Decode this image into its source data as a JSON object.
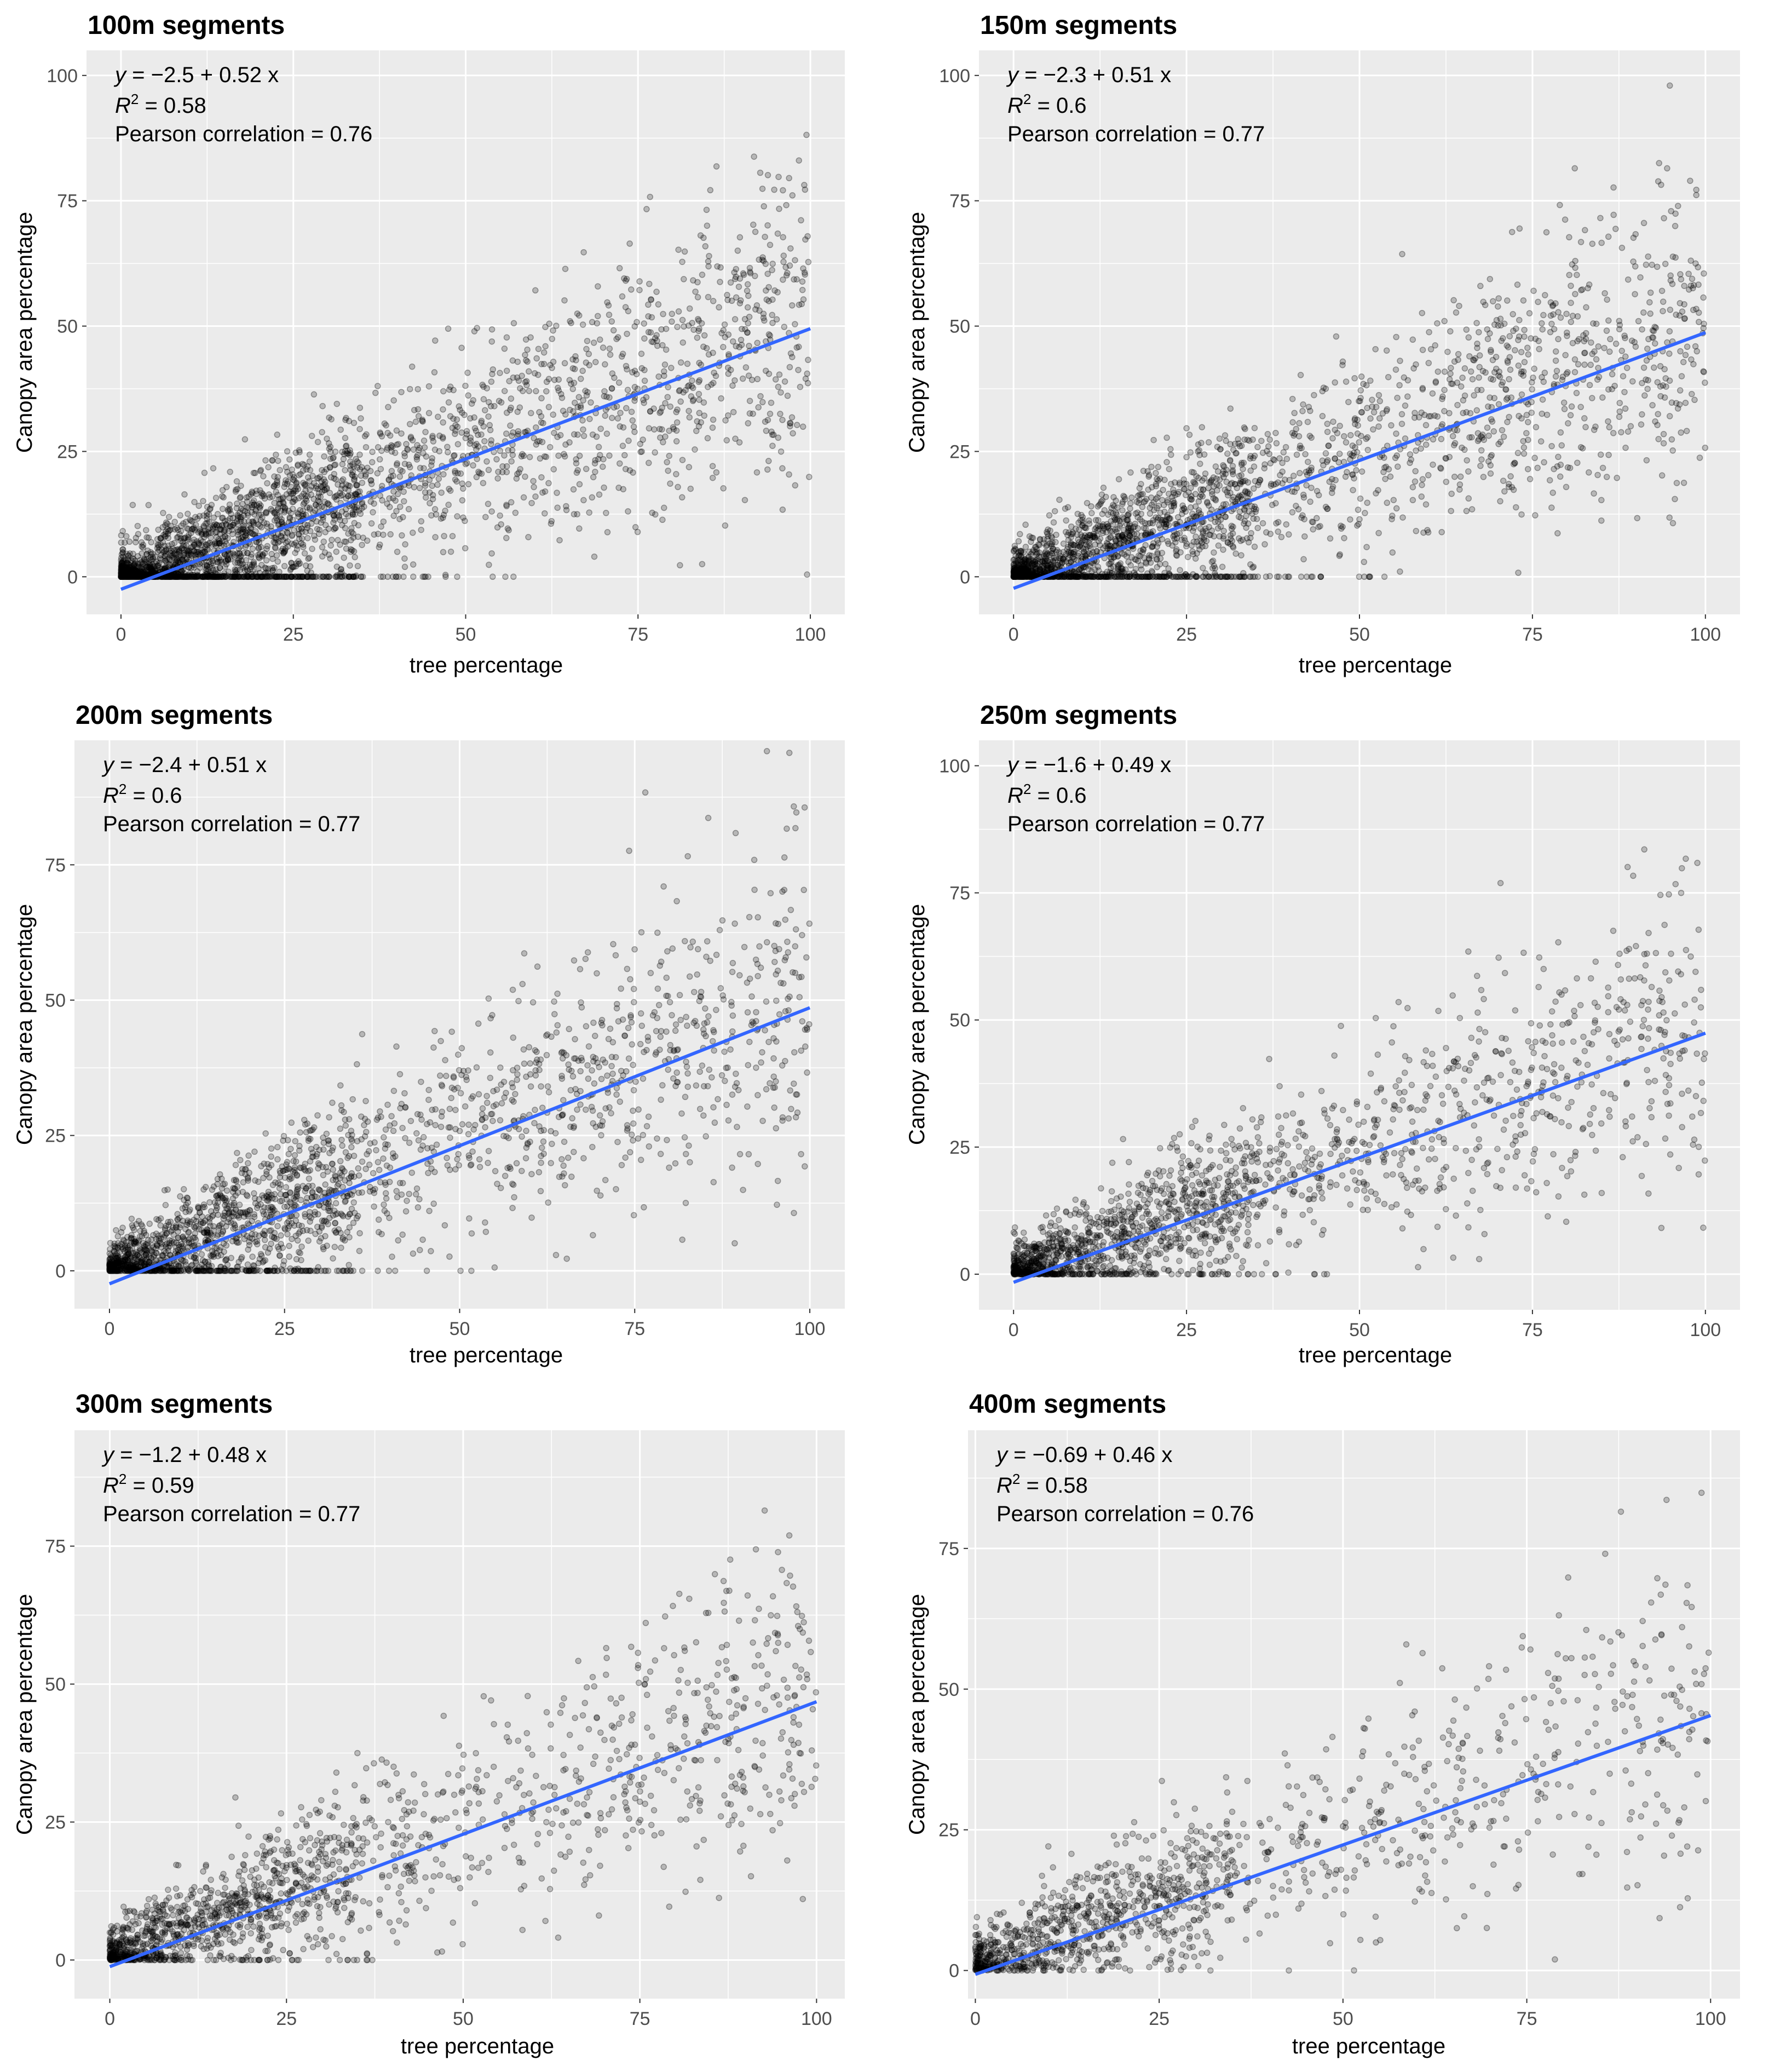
{
  "figure": {
    "xlabel": "tree percentage",
    "ylabel": "Canopy area percentage",
    "colors": {
      "panel_bg": "#ebebeb",
      "grid": "#ffffff",
      "points": "#000000",
      "fit_line": "#3366ff",
      "tick_text": "#4d4d4d"
    }
  },
  "chart_data": [
    {
      "type": "scatter",
      "title": "100m segments",
      "xlabel": "tree percentage",
      "ylabel": "Canopy area percentage",
      "xlim": [
        -5,
        105
      ],
      "ylim": [
        -7.5,
        105
      ],
      "xticks": [
        0,
        25,
        50,
        75,
        100
      ],
      "yticks": [
        0,
        25,
        50,
        75,
        100
      ],
      "xtick_labels": [
        "0",
        "25",
        "50",
        "75",
        "100"
      ],
      "ytick_labels": [
        "0",
        "25",
        "50",
        "75",
        "100"
      ],
      "fit": {
        "intercept": -2.5,
        "slope": 0.52
      },
      "annotation": {
        "equation_y": "y",
        "equation_rhs": " = −2.5 + 0.52 x",
        "r2_label": "R",
        "r2_sup": "2",
        "r2_value": " = 0.58",
        "pearson": "Pearson correlation = 0.76"
      },
      "point_cloud": {
        "n_points": 3000,
        "max_x": 100,
        "noise_sd": 11,
        "zero_share": 0.25,
        "seed": 101
      }
    },
    {
      "type": "scatter",
      "title": "150m segments",
      "xlabel": "tree percentage",
      "ylabel": "Canopy area percentage",
      "xlim": [
        -5,
        105
      ],
      "ylim": [
        -7.5,
        105
      ],
      "xticks": [
        0,
        25,
        50,
        75,
        100
      ],
      "yticks": [
        0,
        25,
        50,
        75,
        100
      ],
      "xtick_labels": [
        "0",
        "25",
        "50",
        "75",
        "100"
      ],
      "ytick_labels": [
        "0",
        "25",
        "50",
        "75",
        "100"
      ],
      "fit": {
        "intercept": -2.3,
        "slope": 0.51
      },
      "annotation": {
        "equation_y": "y",
        "equation_rhs": " = −2.3 + 0.51 x",
        "r2_label": "R",
        "r2_sup": "2",
        "r2_value": " = 0.6",
        "pearson": "Pearson correlation = 0.77"
      },
      "point_cloud": {
        "n_points": 2500,
        "max_x": 100,
        "noise_sd": 10.5,
        "zero_share": 0.2,
        "seed": 151
      }
    },
    {
      "type": "scatter",
      "title": "200m segments",
      "xlabel": "tree percentage",
      "ylabel": "Canopy area percentage",
      "xlim": [
        -5,
        105
      ],
      "ylim": [
        -7,
        98
      ],
      "xticks": [
        0,
        25,
        50,
        75,
        100
      ],
      "yticks": [
        0,
        25,
        50,
        75
      ],
      "xtick_labels": [
        "0",
        "25",
        "50",
        "75",
        "100"
      ],
      "ytick_labels": [
        "0",
        "25",
        "50",
        "75"
      ],
      "fit": {
        "intercept": -2.4,
        "slope": 0.51
      },
      "annotation": {
        "equation_y": "y",
        "equation_rhs": " = −2.4 + 0.51 x",
        "r2_label": "R",
        "r2_sup": "2",
        "r2_value": " = 0.6",
        "pearson": "Pearson correlation = 0.77"
      },
      "point_cloud": {
        "n_points": 2200,
        "max_x": 100,
        "noise_sd": 10.5,
        "zero_share": 0.2,
        "seed": 201
      }
    },
    {
      "type": "scatter",
      "title": "250m segments",
      "xlabel": "tree percentage",
      "ylabel": "Canopy area percentage",
      "xlim": [
        -5,
        105
      ],
      "ylim": [
        -7,
        105
      ],
      "xticks": [
        0,
        25,
        50,
        75,
        100
      ],
      "yticks": [
        0,
        25,
        50,
        75,
        100
      ],
      "xtick_labels": [
        "0",
        "25",
        "50",
        "75",
        "100"
      ],
      "ytick_labels": [
        "0",
        "25",
        "50",
        "75",
        "100"
      ],
      "fit": {
        "intercept": -1.6,
        "slope": 0.49
      },
      "annotation": {
        "equation_y": "y",
        "equation_rhs": " = −1.6 + 0.49 x",
        "r2_label": "R",
        "r2_sup": "2",
        "r2_value": " = 0.6",
        "pearson": "Pearson correlation = 0.77"
      },
      "point_cloud": {
        "n_points": 1800,
        "max_x": 100,
        "noise_sd": 10,
        "zero_share": 0.12,
        "seed": 251
      }
    },
    {
      "type": "scatter",
      "title": "300m segments",
      "xlabel": "tree percentage",
      "ylabel": "Canopy area percentage",
      "xlim": [
        -5,
        104
      ],
      "ylim": [
        -7,
        96
      ],
      "xticks": [
        0,
        25,
        50,
        75,
        100
      ],
      "yticks": [
        0,
        25,
        50,
        75
      ],
      "xtick_labels": [
        "0",
        "25",
        "50",
        "75",
        "100"
      ],
      "ytick_labels": [
        "0",
        "25",
        "50",
        "75"
      ],
      "fit": {
        "intercept": -1.2,
        "slope": 0.48
      },
      "annotation": {
        "equation_y": "y",
        "equation_rhs": " = −1.2 + 0.48 x",
        "r2_label": "R",
        "r2_sup": "2",
        "r2_value": " = 0.59",
        "pearson": "Pearson correlation = 0.77"
      },
      "point_cloud": {
        "n_points": 1600,
        "max_x": 100,
        "noise_sd": 10,
        "zero_share": 0.08,
        "seed": 301
      }
    },
    {
      "type": "scatter",
      "title": "400m segments",
      "xlabel": "tree percentage",
      "ylabel": "Canopy area percentage",
      "xlim": [
        -1,
        104
      ],
      "ylim": [
        -5,
        96
      ],
      "xticks": [
        0,
        25,
        50,
        75,
        100
      ],
      "yticks": [
        0,
        25,
        50,
        75
      ],
      "xtick_labels": [
        "0",
        "25",
        "50",
        "75",
        "100"
      ],
      "ytick_labels": [
        "0",
        "25",
        "50",
        "75"
      ],
      "fit": {
        "intercept": -0.69,
        "slope": 0.46
      },
      "annotation": {
        "equation_y": "y",
        "equation_rhs": " = −0.69 + 0.46 x",
        "r2_label": "R",
        "r2_sup": "2",
        "r2_value": " = 0.58",
        "pearson": "Pearson correlation = 0.76"
      },
      "point_cloud": {
        "n_points": 1300,
        "max_x": 100,
        "noise_sd": 10,
        "zero_share": 0.05,
        "seed": 401
      }
    }
  ]
}
